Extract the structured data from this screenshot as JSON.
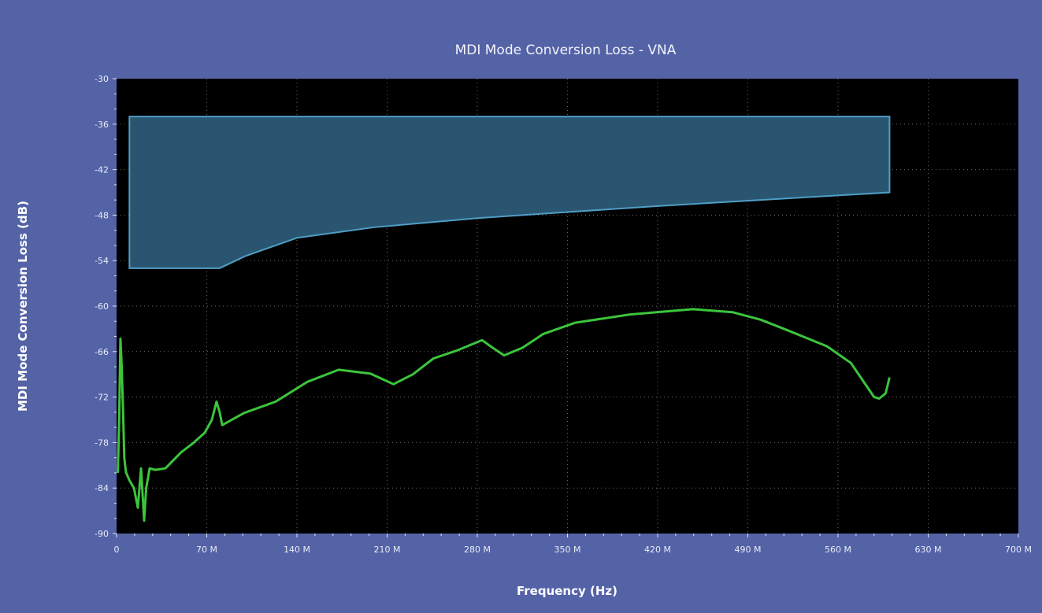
{
  "chart_data": {
    "type": "line",
    "title": "MDI Mode Conversion Loss - VNA",
    "xlabel": "Frequency (Hz)",
    "ylabel": "MDI Mode Conversion Loss (dB)",
    "xlim": [
      0,
      700
    ],
    "ylim": [
      -90,
      -30
    ],
    "x_unit_suffix": " M",
    "x_ticks": [
      0,
      70,
      140,
      210,
      280,
      350,
      420,
      490,
      560,
      630,
      700
    ],
    "x_tick_labels": [
      "0",
      "70 M",
      "140 M",
      "210 M",
      "280 M",
      "350 M",
      "420 M",
      "490 M",
      "560 M",
      "630 M",
      "700 M"
    ],
    "y_ticks": [
      -30,
      -36,
      -42,
      -48,
      -54,
      -60,
      -66,
      -72,
      -78,
      -84,
      -90
    ],
    "y_tick_labels": [
      "-30",
      "-36",
      "-42",
      "-48",
      "-54",
      "-60",
      "-66",
      "-72",
      "-78",
      "-84",
      "-90"
    ],
    "grid": true,
    "colors": {
      "background": "#5462a6",
      "plot": "#000000",
      "trace": "#3cc43c",
      "mask_fill": "#2a5570",
      "mask_edge": "#4f9ec6",
      "grid": "#6a6a6a"
    },
    "limit_mask": {
      "upper": [
        [
          10,
          -35
        ],
        [
          600,
          -35
        ]
      ],
      "lower": [
        [
          10,
          -55
        ],
        [
          80,
          -55
        ],
        [
          100,
          -53.4
        ],
        [
          140,
          -51.0
        ],
        [
          200,
          -49.6
        ],
        [
          280,
          -48.4
        ],
        [
          350,
          -47.6
        ],
        [
          420,
          -46.8
        ],
        [
          500,
          -46.0
        ],
        [
          600,
          -45.0
        ]
      ]
    },
    "series": [
      {
        "x": [
          1,
          2,
          3,
          4,
          5,
          6,
          7.3,
          10,
          13.5,
          16.5,
          19,
          21.4,
          23,
          25.7,
          30,
          37.9,
          50,
          60,
          68.5,
          74,
          77.6,
          80,
          82,
          99,
          123.5,
          148,
          172.4,
          197,
          215,
          230,
          246,
          265,
          283.7,
          292,
          300.8,
          315,
          331,
          355.8,
          398.6,
          447.5,
          478,
          500,
          521,
          551.5,
          570,
          588,
          592,
          597,
          600
        ],
        "y": [
          -82,
          -75,
          -64.3,
          -68,
          -73.6,
          -80,
          -81.9,
          -83,
          -84,
          -86.6,
          -81.4,
          -88.3,
          -84,
          -81.4,
          -81.6,
          -81.4,
          -79.3,
          -78,
          -76.7,
          -75,
          -72.6,
          -74,
          -75.7,
          -74.1,
          -72.6,
          -70,
          -68.4,
          -68.9,
          -70.3,
          -69,
          -66.9,
          -65.8,
          -64.5,
          -65.5,
          -66.5,
          -65.5,
          -63.7,
          -62.2,
          -61.1,
          -60.4,
          -60.8,
          -61.8,
          -63.2,
          -65.3,
          -67.5,
          -72.0,
          -72.2,
          -71.5,
          -69.4
        ]
      }
    ]
  }
}
